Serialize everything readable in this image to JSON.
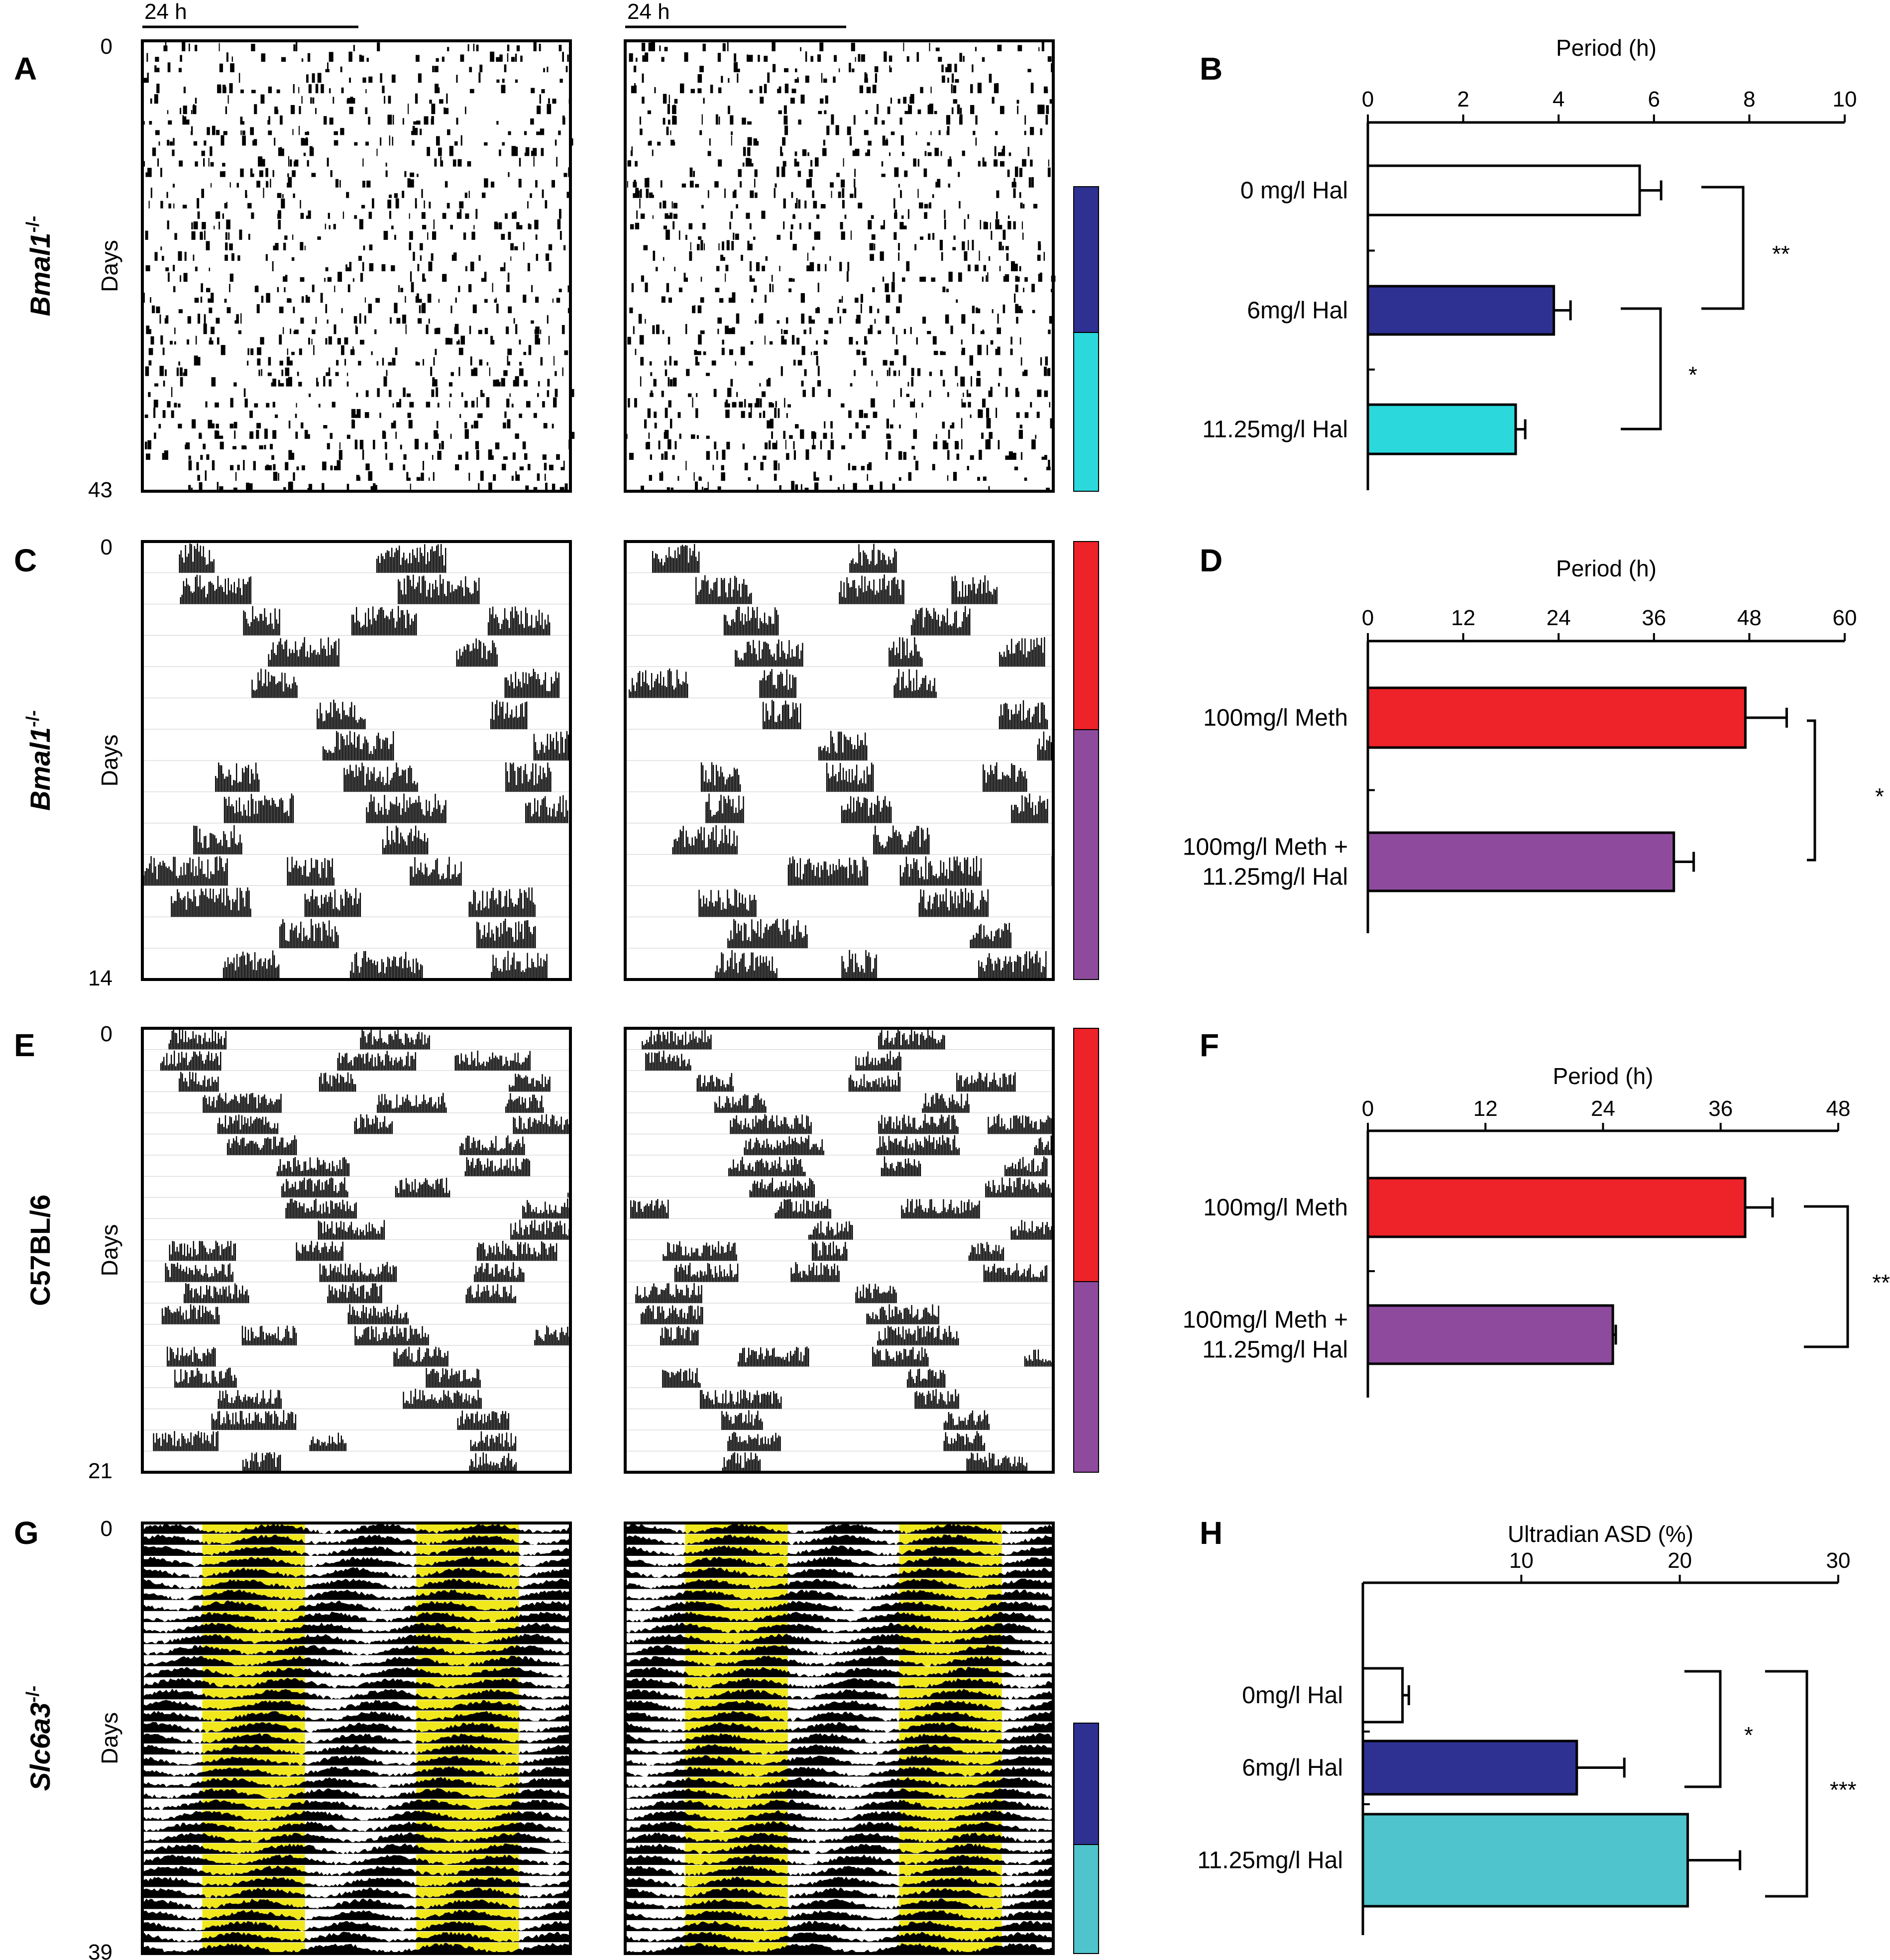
{
  "panel_labels": [
    "A",
    "B",
    "C",
    "D",
    "E",
    "F",
    "G",
    "H"
  ],
  "scale_bar_label": "24 h",
  "actogram_rows": [
    {
      "genotype": "Bmal1",
      "genotype_sup": "-/-",
      "days_label": "Days",
      "day_start": "0",
      "day_end": "43",
      "segments": [
        "#2e3192",
        "#2bd9dc"
      ]
    },
    {
      "genotype": "Bmal1",
      "genotype_sup": "-/-",
      "days_label": "Days",
      "day_start": "0",
      "day_end": "14",
      "segments": [
        "#ee2229",
        "#8e4b9e"
      ]
    },
    {
      "genotype": "C57BL/6",
      "genotype_sup": "",
      "days_label": "Days",
      "day_start": "0",
      "day_end": "21",
      "segments": [
        "#ee2229",
        "#8e4b9e"
      ]
    },
    {
      "genotype": "Slc6a3",
      "genotype_sup": "-/-",
      "days_label": "Days",
      "day_start": "0",
      "day_end": "39",
      "segments": [
        "#2e3192",
        "#4fc4cc"
      ]
    }
  ],
  "chart_data": [
    {
      "panel": "B",
      "type": "bar",
      "orientation": "horizontal",
      "title": "",
      "xlabel": "Period (h)",
      "ylabel": "",
      "xlim": [
        0,
        10
      ],
      "ticks": [
        "0",
        "2",
        "4",
        "6",
        "8",
        "10"
      ],
      "categories": [
        [
          "0 mg/l Hal"
        ],
        [
          "6mg/l Hal"
        ],
        [
          "11.25mg/l Hal"
        ]
      ],
      "values": [
        5.7,
        3.9,
        3.1
      ],
      "errors": [
        0.45,
        0.35,
        0.2
      ],
      "colors": [
        "#ffffff",
        "#2e3192",
        "#2bd9dc"
      ],
      "significance": [
        {
          "between": [
            0,
            1
          ],
          "label": "**"
        },
        {
          "between": [
            1,
            2
          ],
          "label": "*"
        }
      ]
    },
    {
      "panel": "D",
      "type": "bar",
      "orientation": "horizontal",
      "title": "",
      "xlabel": "Period (h)",
      "ylabel": "",
      "xlim": [
        0,
        60
      ],
      "ticks": [
        "0",
        "12",
        "24",
        "36",
        "48",
        "60"
      ],
      "categories": [
        [
          "100mg/l Meth"
        ],
        [
          "100mg/l Meth +",
          "11.25mg/l Hal"
        ]
      ],
      "values": [
        47.5,
        38.5
      ],
      "errors": [
        5.2,
        2.5
      ],
      "colors": [
        "#ee2229",
        "#8e4b9e"
      ],
      "significance": [
        {
          "between": [
            0,
            1
          ],
          "label": "*"
        }
      ]
    },
    {
      "panel": "F",
      "type": "bar",
      "orientation": "horizontal",
      "title": "",
      "xlabel": "Period (h)",
      "ylabel": "",
      "xlim": [
        0,
        48
      ],
      "ticks": [
        "0",
        "12",
        "24",
        "36",
        "48"
      ],
      "categories": [
        [
          "100mg/l Meth"
        ],
        [
          "100mg/l Meth +",
          "11.25mg/l Hal"
        ]
      ],
      "values": [
        38.5,
        25.0
      ],
      "errors": [
        2.8,
        0.3
      ],
      "colors": [
        "#ee2229",
        "#8e4b9e"
      ],
      "significance": [
        {
          "between": [
            0,
            1
          ],
          "label": "**"
        }
      ]
    },
    {
      "panel": "H",
      "type": "bar",
      "orientation": "horizontal",
      "title": "",
      "xlabel": "Ultradian ASD (%)",
      "ylabel": "",
      "xlim": [
        0,
        30
      ],
      "ticks": [
        "10",
        "20",
        "30"
      ],
      "categories": [
        [
          "0mg/l Hal"
        ],
        [
          "6mg/l Hal"
        ],
        [
          "11.25mg/l Hal"
        ]
      ],
      "values": [
        2.5,
        13.5,
        20.5
      ],
      "errors": [
        0.4,
        3.0,
        3.3
      ],
      "colors": [
        "#ffffff",
        "#2e3192",
        "#4fc4cc"
      ],
      "significance": [
        {
          "between": [
            0,
            1
          ],
          "label": "*"
        },
        {
          "between": [
            0,
            2
          ],
          "label": "***"
        }
      ]
    }
  ]
}
